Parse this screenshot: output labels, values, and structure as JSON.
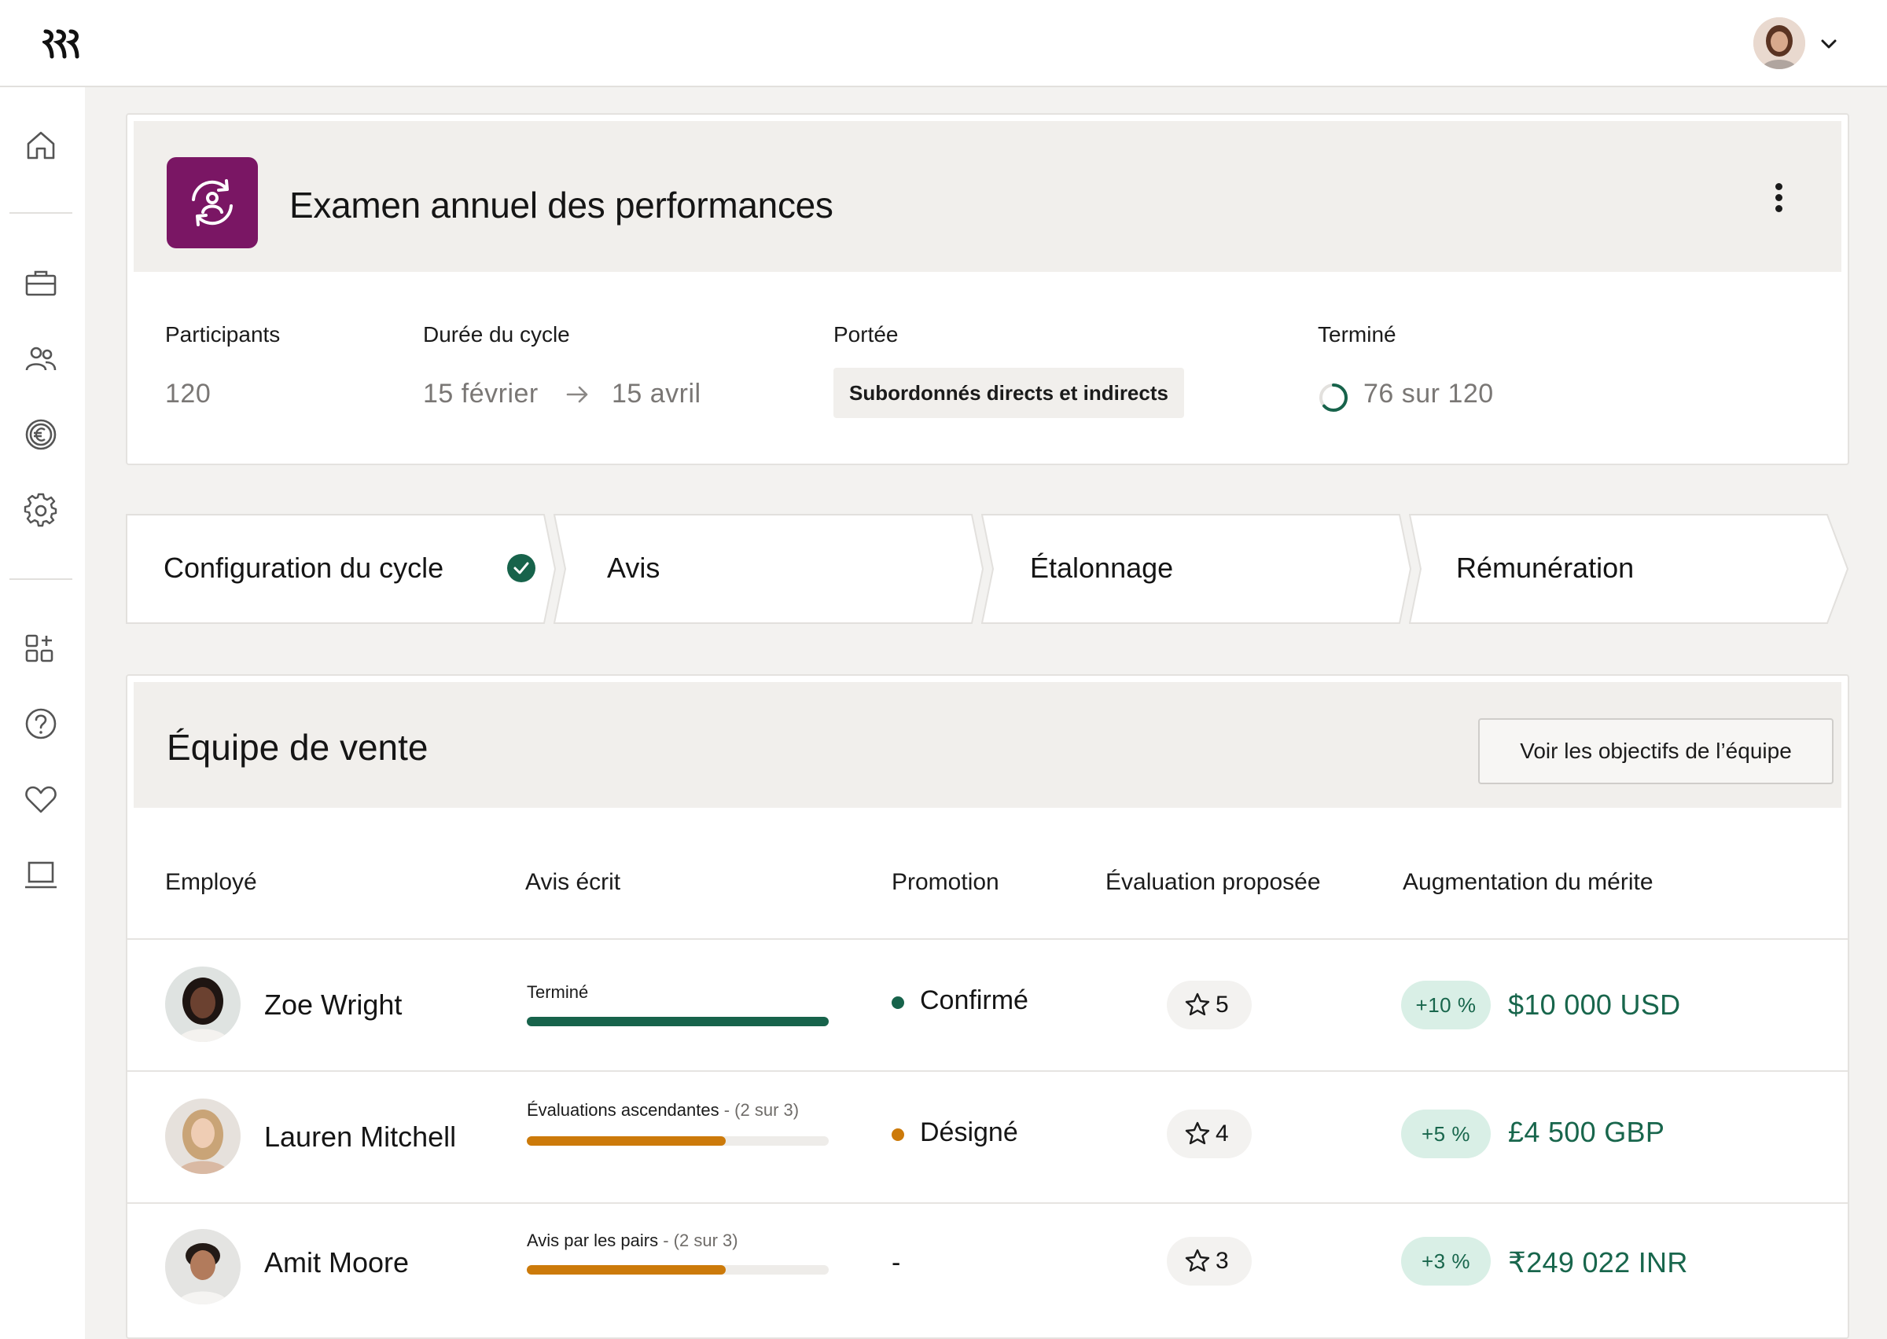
{
  "topbar": {
    "logo_icon": "rippling-logo-icon",
    "user_menu_icon": "chevron-down-icon"
  },
  "sidebar": {
    "items": [
      {
        "icon": "home-icon"
      },
      {
        "icon": "briefcase-icon"
      },
      {
        "icon": "people-icon"
      },
      {
        "icon": "euro-icon"
      },
      {
        "icon": "gear-icon"
      },
      {
        "icon": "apps-add-icon"
      },
      {
        "icon": "help-icon"
      },
      {
        "icon": "heart-icon"
      },
      {
        "icon": "laptop-icon"
      }
    ]
  },
  "cycle": {
    "title": "Examen annuel des performances",
    "icon": "review-cycle-icon",
    "participants_label": "Participants",
    "participants_value": "120",
    "duration_label": "Durée du cycle",
    "duration_start": "15 février",
    "duration_end": "15 avril",
    "scope_label": "Portée",
    "scope_value": "Subordonnés directs et indirects",
    "completed_label": "Terminé",
    "completed_value": "76 sur 120",
    "completed_fraction": 0.633
  },
  "steps": [
    {
      "label": "Configuration du cycle",
      "done": true
    },
    {
      "label": "Avis",
      "done": false
    },
    {
      "label": "Étalonnage",
      "done": false
    },
    {
      "label": "Rémunération",
      "done": false
    }
  ],
  "team": {
    "title": "Équipe de vente",
    "goals_button": "Voir les objectifs de l’équipe",
    "columns": [
      "Employé",
      "Avis écrit",
      "Promotion",
      "Évaluation proposée",
      "Augmentation du mérite"
    ],
    "rows": [
      {
        "name": "Zoe Wright",
        "review_label": "Terminé",
        "review_count": "",
        "review_progress": 1.0,
        "review_color": "#17634b",
        "promotion": "Confirmé",
        "promotion_color": "#17634b",
        "rating": "5",
        "merit_pct": "+10 %",
        "merit_amount": "$10 000 USD"
      },
      {
        "name": "Lauren Mitchell",
        "review_label": "Évaluations ascendantes",
        "review_count": " - (2 sur 3)",
        "review_progress": 0.66,
        "review_color": "#cc7a0a",
        "promotion": "Désigné",
        "promotion_color": "#cc7a0a",
        "rating": "4",
        "merit_pct": "+5 %",
        "merit_amount": "£4 500 GBP"
      },
      {
        "name": "Amit Moore",
        "review_label": "Avis par les pairs",
        "review_count": " - (2 sur 3)",
        "review_progress": 0.66,
        "review_color": "#cc7a0a",
        "promotion": "-",
        "promotion_color": "",
        "rating": "3",
        "merit_pct": "+3 %",
        "merit_amount": "₹249 022 INR"
      }
    ]
  },
  "colors": {
    "accent_purple": "#7a1664",
    "success_green": "#17634b",
    "warning_orange": "#cc7a0a",
    "chip_green_bg": "#d9efe6"
  }
}
